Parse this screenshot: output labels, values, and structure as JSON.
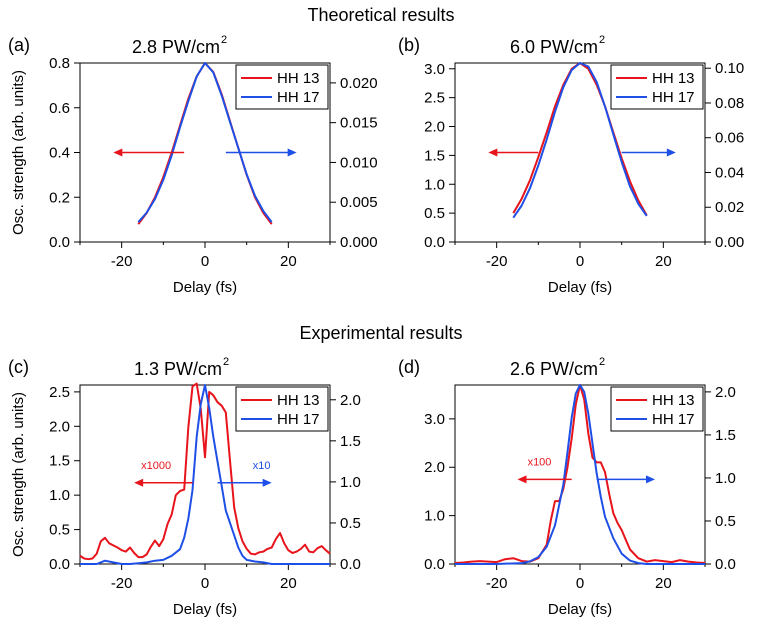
{
  "sections": [
    {
      "title": "Theoretical results"
    },
    {
      "title": "Experimental results"
    }
  ],
  "colors": {
    "hh13": "#e8141c",
    "hh17": "#1e4fe6"
  },
  "chart_data": [
    {
      "type": "line",
      "panel": "(a)",
      "title_main": "2.8 PW/cm",
      "title_sup": "2",
      "xlabel": "Delay (fs)",
      "ylabel": "Osc. strength (arb. units)",
      "xlim": [
        -30,
        30
      ],
      "xticks": [
        -20,
        0,
        20
      ],
      "xtick_labels": [
        "-20",
        "0",
        "20"
      ],
      "ylim_left": [
        0,
        0.8
      ],
      "yticks_left": [
        0,
        0.2,
        0.4,
        0.6,
        0.8
      ],
      "ytick_labels_left": [
        "0.0",
        "0.2",
        "0.4",
        "0.6",
        "0.8"
      ],
      "ylim_right": [
        0,
        0.0225
      ],
      "yticks_right": [
        0,
        0.005,
        0.01,
        0.015,
        0.02
      ],
      "ytick_labels_right": [
        "0.000",
        "0.005",
        "0.010",
        "0.015",
        "0.020"
      ],
      "legend": [
        "HH 13",
        "HH 17"
      ],
      "legend_position": "top-right",
      "arrows": [
        {
          "from": -5,
          "to": -22,
          "y": 0.4,
          "axis": "left",
          "series": "HH 13",
          "label": ""
        },
        {
          "from": 5,
          "to": 22,
          "y": 0.4,
          "axis": "left",
          "series": "HH 17",
          "label": ""
        }
      ],
      "series": [
        {
          "name": "HH 13",
          "axis": "left",
          "x": [
            -16,
            -14,
            -12,
            -10,
            -8,
            -6,
            -4,
            -2,
            0,
            2,
            4,
            6,
            8,
            10,
            12,
            14,
            16
          ],
          "y": [
            0.08,
            0.13,
            0.2,
            0.29,
            0.4,
            0.52,
            0.64,
            0.74,
            0.8,
            0.76,
            0.66,
            0.54,
            0.42,
            0.3,
            0.2,
            0.13,
            0.08
          ]
        },
        {
          "name": "HH 17",
          "axis": "right",
          "x": [
            -16,
            -14,
            -12,
            -10,
            -8,
            -6,
            -4,
            -2,
            0,
            2,
            4,
            6,
            8,
            10,
            12,
            14,
            16
          ],
          "y": [
            0.0025,
            0.0037,
            0.0054,
            0.0078,
            0.0109,
            0.0144,
            0.0177,
            0.0208,
            0.0225,
            0.0213,
            0.0184,
            0.0151,
            0.0118,
            0.0085,
            0.0058,
            0.0039,
            0.0025
          ]
        }
      ]
    },
    {
      "type": "line",
      "panel": "(b)",
      "title_main": "6.0 PW/cm",
      "title_sup": "2",
      "xlabel": "Delay (fs)",
      "ylabel": "",
      "xlim": [
        -30,
        30
      ],
      "xticks": [
        -20,
        0,
        20
      ],
      "xtick_labels": [
        "-20",
        "0",
        "20"
      ],
      "ylim_left": [
        0,
        3.1
      ],
      "yticks_left": [
        0,
        0.5,
        1,
        1.5,
        2,
        2.5,
        3
      ],
      "ytick_labels_left": [
        "0.0",
        "0.5",
        "1.0",
        "1.5",
        "2.0",
        "2.5",
        "3.0"
      ],
      "ylim_right": [
        0,
        0.103
      ],
      "yticks_right": [
        0,
        0.02,
        0.04,
        0.06,
        0.08,
        0.1
      ],
      "ytick_labels_right": [
        "0.00",
        "0.02",
        "0.04",
        "0.06",
        "0.08",
        "0.10"
      ],
      "legend": [
        "HH 13",
        "HH 17"
      ],
      "legend_position": "top-right",
      "arrows": [
        {
          "from": -10,
          "to": -22,
          "y": 1.55,
          "axis": "left",
          "series": "HH 13",
          "label": ""
        },
        {
          "from": 10,
          "to": 23,
          "y": 1.55,
          "axis": "left",
          "series": "HH 17",
          "label": ""
        }
      ],
      "series": [
        {
          "name": "HH 13",
          "axis": "left",
          "x": [
            -16,
            -14,
            -12,
            -10,
            -8,
            -6,
            -4,
            -2,
            0,
            2,
            4,
            6,
            8,
            10,
            12,
            14,
            16
          ],
          "y": [
            0.5,
            0.75,
            1.07,
            1.47,
            1.9,
            2.35,
            2.72,
            3.0,
            3.1,
            3.0,
            2.72,
            2.35,
            1.9,
            1.45,
            1.05,
            0.72,
            0.46
          ]
        },
        {
          "name": "HH 17",
          "axis": "right",
          "x": [
            -16,
            -14,
            -12,
            -10,
            -8,
            -6,
            -4,
            -2,
            0,
            2,
            4,
            6,
            8,
            10,
            12,
            14,
            16
          ],
          "y": [
            0.014,
            0.021,
            0.031,
            0.044,
            0.059,
            0.075,
            0.089,
            0.099,
            0.103,
            0.101,
            0.092,
            0.078,
            0.062,
            0.046,
            0.032,
            0.022,
            0.015
          ]
        }
      ]
    },
    {
      "type": "line",
      "panel": "(c)",
      "title_main": "1.3 PW/cm",
      "title_sup": "2",
      "xlabel": "Delay (fs)",
      "ylabel": "Osc. strength (arb. units)",
      "xlim": [
        -30,
        30
      ],
      "xticks": [
        -20,
        0,
        20
      ],
      "xtick_labels": [
        "-20",
        "0",
        "20"
      ],
      "ylim_left": [
        0,
        2.6
      ],
      "yticks_left": [
        0,
        0.5,
        1,
        1.5,
        2,
        2.5
      ],
      "ytick_labels_left": [
        "0.0",
        "0.5",
        "1.0",
        "1.5",
        "2.0",
        "2.5"
      ],
      "ylim_right": [
        0,
        2.18
      ],
      "yticks_right": [
        0,
        0.5,
        1,
        1.5,
        2
      ],
      "ytick_labels_right": [
        "0.0",
        "0.5",
        "1.0",
        "1.5",
        "2.0"
      ],
      "legend": [
        "HH 13",
        "HH 17"
      ],
      "legend_position": "top-right",
      "arrows": [
        {
          "from": -3,
          "to": -17,
          "y": 1.18,
          "axis": "left",
          "series": "HH 13",
          "label": "x1000"
        },
        {
          "from": 3,
          "to": 16,
          "y": 1.18,
          "axis": "left",
          "series": "HH 17",
          "label": "x10"
        }
      ],
      "series": [
        {
          "name": "HH 13",
          "axis": "left",
          "x": [
            -30,
            -29,
            -28,
            -27,
            -26,
            -25,
            -24,
            -23,
            -22,
            -21,
            -20,
            -19,
            -18,
            -17,
            -16,
            -15,
            -14,
            -13,
            -12,
            -11,
            -10,
            -9,
            -8,
            -7,
            -6,
            -5,
            -4,
            -3,
            -2,
            -1,
            0,
            1,
            2,
            3,
            4,
            5,
            6,
            7,
            8,
            9,
            10,
            11,
            12,
            13,
            14,
            15,
            16,
            17,
            18,
            19,
            20,
            21,
            22,
            23,
            24,
            25,
            26,
            27,
            28,
            29,
            30
          ],
          "y": [
            0.12,
            0.08,
            0.07,
            0.08,
            0.15,
            0.33,
            0.38,
            0.3,
            0.27,
            0.24,
            0.2,
            0.18,
            0.24,
            0.16,
            0.1,
            0.1,
            0.14,
            0.25,
            0.34,
            0.26,
            0.36,
            0.58,
            0.72,
            1.0,
            1.06,
            1.08,
            1.98,
            2.58,
            2.62,
            2.25,
            1.55,
            2.5,
            2.45,
            2.35,
            2.3,
            2.2,
            1.5,
            0.82,
            0.52,
            0.33,
            0.22,
            0.15,
            0.14,
            0.17,
            0.18,
            0.22,
            0.24,
            0.36,
            0.45,
            0.3,
            0.2,
            0.16,
            0.18,
            0.22,
            0.28,
            0.18,
            0.17,
            0.23,
            0.26,
            0.2,
            0.15
          ]
        },
        {
          "name": "HH 17",
          "axis": "right",
          "x": [
            -30,
            -28,
            -26,
            -24,
            -22,
            -20,
            -18,
            -16,
            -14,
            -12,
            -10,
            -8,
            -6,
            -5,
            -4,
            -3,
            -2,
            -1,
            0,
            1,
            2,
            3,
            4,
            5,
            6,
            7,
            8,
            9,
            10,
            12,
            14,
            16,
            18,
            20,
            22,
            24,
            26,
            28,
            30
          ],
          "y": [
            0.0,
            0.0,
            0.0,
            0.04,
            0.02,
            0.0,
            0.0,
            0.01,
            0.02,
            0.04,
            0.05,
            0.1,
            0.18,
            0.32,
            0.55,
            0.9,
            1.55,
            1.95,
            2.18,
            1.9,
            1.55,
            1.25,
            0.95,
            0.65,
            0.5,
            0.35,
            0.2,
            0.1,
            0.05,
            0.03,
            0.02,
            0.0,
            0.0,
            0.0,
            0.0,
            0.0,
            0.0,
            0.0,
            0.0
          ]
        }
      ]
    },
    {
      "type": "line",
      "panel": "(d)",
      "title_main": "2.6 PW/cm",
      "title_sup": "2",
      "xlabel": "Delay (fs)",
      "ylabel": "",
      "xlim": [
        -30,
        30
      ],
      "xticks": [
        -20,
        0,
        20
      ],
      "xtick_labels": [
        "-20",
        "0",
        "20"
      ],
      "ylim_left": [
        0,
        3.7
      ],
      "yticks_left": [
        0,
        1,
        2,
        3
      ],
      "ytick_labels_left": [
        "0.0",
        "1.0",
        "2.0",
        "3.0"
      ],
      "ylim_right": [
        0,
        2.08
      ],
      "yticks_right": [
        0,
        0.5,
        1,
        1.5,
        2
      ],
      "ytick_labels_right": [
        "0.0",
        "0.5",
        "1.0",
        "1.5",
        "2.0"
      ],
      "legend": [
        "HH 13",
        "HH 17"
      ],
      "legend_position": "top-right",
      "arrows": [
        {
          "from": -2,
          "to": -15,
          "y": 1.75,
          "axis": "left",
          "series": "HH 13",
          "label": "x100"
        },
        {
          "from": 4,
          "to": 18,
          "y": 1.75,
          "axis": "left",
          "series": "HH 17",
          "label": ""
        }
      ],
      "series": [
        {
          "name": "HH 13",
          "axis": "left",
          "x": [
            -30,
            -28,
            -26,
            -24,
            -22,
            -20,
            -18,
            -16,
            -14,
            -12,
            -10,
            -8,
            -7,
            -6,
            -5,
            -4,
            -3,
            -2,
            -1,
            0,
            1,
            2,
            3,
            4,
            5,
            6,
            7,
            8,
            9,
            10,
            11,
            12,
            14,
            16,
            18,
            20,
            22,
            24,
            26,
            28,
            30
          ],
          "y": [
            0.02,
            0.03,
            0.05,
            0.06,
            0.05,
            0.04,
            0.1,
            0.12,
            0.06,
            0.05,
            0.12,
            0.4,
            0.9,
            1.3,
            1.3,
            1.55,
            2.0,
            2.6,
            3.3,
            3.7,
            3.4,
            2.7,
            2.2,
            2.1,
            2.1,
            1.9,
            1.45,
            1.05,
            0.85,
            0.7,
            0.5,
            0.3,
            0.12,
            0.05,
            0.08,
            0.06,
            0.04,
            0.08,
            0.05,
            0.03,
            0.02
          ]
        },
        {
          "name": "HH 17",
          "axis": "right",
          "x": [
            -30,
            -20,
            -14,
            -12,
            -10,
            -8,
            -6,
            -4,
            -3,
            -2,
            -1,
            0,
            1,
            2,
            3,
            4,
            5,
            6,
            8,
            10,
            12,
            14,
            16,
            20,
            30
          ],
          "y": [
            0.0,
            0.0,
            0.01,
            0.03,
            0.08,
            0.2,
            0.45,
            0.92,
            1.3,
            1.7,
            1.98,
            2.08,
            2.0,
            1.75,
            1.4,
            1.05,
            0.78,
            0.55,
            0.3,
            0.12,
            0.04,
            0.01,
            0.0,
            0.0,
            0.0
          ]
        }
      ]
    }
  ]
}
